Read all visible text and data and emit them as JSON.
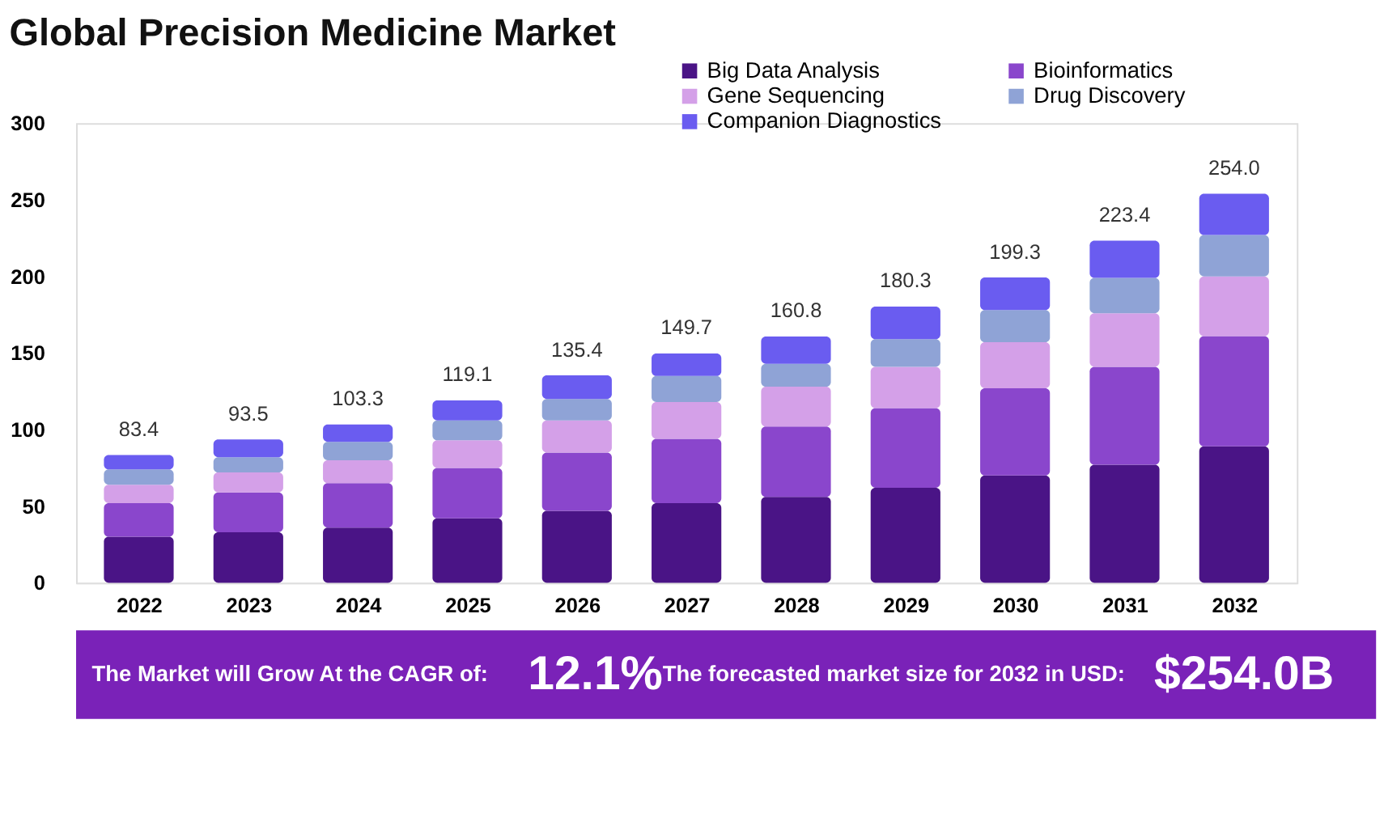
{
  "chart_data": {
    "type": "bar",
    "title": "Global Precision Medicine Market",
    "stacked": true,
    "categories": [
      "2022",
      "2023",
      "2024",
      "2025",
      "2026",
      "2027",
      "2028",
      "2029",
      "2030",
      "2031",
      "2032"
    ],
    "series": [
      {
        "name": "Big Data Analysis",
        "color": "#4a1486",
        "values": [
          30,
          33,
          36,
          42,
          47,
          52,
          56,
          62,
          70,
          77,
          89
        ]
      },
      {
        "name": "Bioinformatics",
        "color": "#8a46cc",
        "values": [
          22,
          26,
          29,
          33,
          38,
          42,
          46,
          52,
          57,
          64,
          72
        ]
      },
      {
        "name": "Gene Sequencing",
        "color": "#d4a0e8",
        "values": [
          12,
          13,
          15,
          18,
          21,
          24,
          26,
          27,
          30,
          35,
          39
        ]
      },
      {
        "name": "Drug Discovery",
        "color": "#8fa3d6",
        "values": [
          10,
          10,
          12,
          13,
          14,
          17,
          15,
          18,
          21,
          23,
          27
        ]
      },
      {
        "name": "Companion Diagnostics",
        "color": "#6a5cf0",
        "values": [
          9.4,
          11.5,
          11.3,
          13.1,
          15.4,
          14.7,
          17.8,
          21.3,
          21.3,
          24.4,
          27
        ]
      }
    ],
    "totals": [
      "83.4",
      "93.5",
      "103.3",
      "119.1",
      "135.4",
      "149.7",
      "160.8",
      "180.3",
      "199.3",
      "223.4",
      "254.0"
    ],
    "ylim": [
      0,
      300
    ],
    "yticks": [
      0,
      50,
      100,
      150,
      200,
      250,
      300
    ],
    "grid": false,
    "legend": "top right",
    "annotations": [
      "The Market will Grow At the CAGR of:",
      "12.1%",
      "The forecasted market size for 2032 in USD:",
      "$254.0B"
    ]
  }
}
